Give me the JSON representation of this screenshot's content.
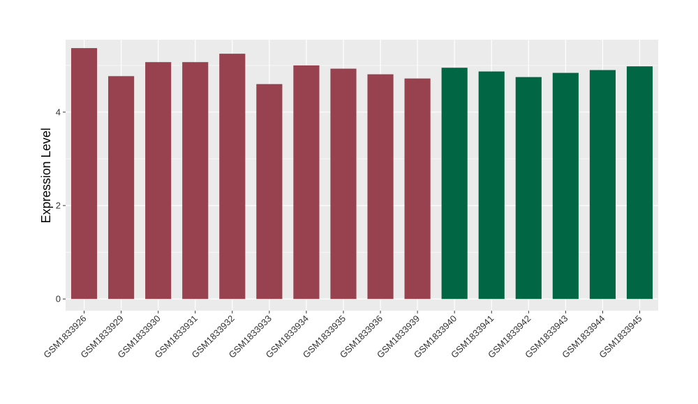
{
  "chart_data": {
    "type": "bar",
    "title": "",
    "xlabel": "",
    "ylabel": "Expression Level",
    "ylim": [
      -0.25,
      5.55
    ],
    "yticks": [
      0,
      2,
      4
    ],
    "ytick_labels": [
      "0",
      "2",
      "4"
    ],
    "grid": true,
    "legend": "none",
    "background": "#EBEBEB",
    "categories": [
      "GSM1833926",
      "GSM1833929",
      "GSM1833930",
      "GSM1833931",
      "GSM1833932",
      "GSM1833933",
      "GSM1833934",
      "GSM1833935",
      "GSM1833936",
      "GSM1833939",
      "GSM1833940",
      "GSM1833941",
      "GSM1833942",
      "GSM1833943",
      "GSM1833944",
      "GSM1833945"
    ],
    "values": [
      5.37,
      4.77,
      5.07,
      5.07,
      5.25,
      4.6,
      5.0,
      4.93,
      4.81,
      4.72,
      4.95,
      4.87,
      4.75,
      4.84,
      4.9,
      4.98
    ],
    "bar_colors": [
      "#99424F",
      "#99424F",
      "#99424F",
      "#99424F",
      "#99424F",
      "#99424F",
      "#99424F",
      "#99424F",
      "#99424F",
      "#99424F",
      "#006643",
      "#006643",
      "#006643",
      "#006643",
      "#006643",
      "#006643"
    ]
  }
}
